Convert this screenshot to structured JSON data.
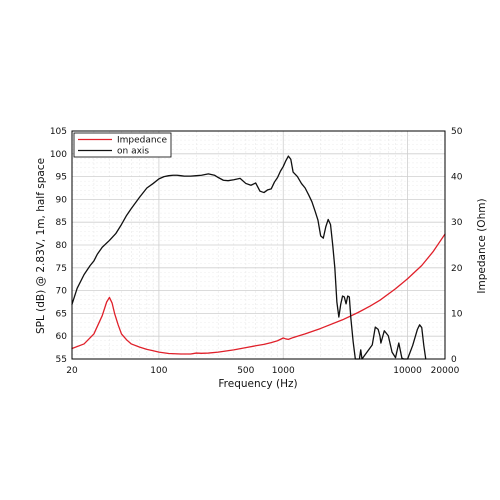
{
  "chart_data": {
    "type": "line",
    "xlabel": "Frequency (Hz)",
    "ylabel_left": "SPL (dB) @ 2.83V, 1m, half space",
    "ylabel_right": "Impedance (Ohm)",
    "x_scale": "log",
    "xlim": [
      20,
      20000
    ],
    "ylim_left": [
      55,
      105
    ],
    "ylim_right": [
      0,
      50
    ],
    "x_ticks": [
      "20",
      "100",
      "500",
      "1000",
      "10000",
      "20000"
    ],
    "y_ticks_left": [
      "55",
      "60",
      "65",
      "70",
      "75",
      "80",
      "85",
      "90",
      "95",
      "100",
      "105"
    ],
    "y_ticks_right": [
      "0",
      "10",
      "20",
      "30",
      "40",
      "50"
    ],
    "grid": true,
    "legend_position": "top-left",
    "series": [
      {
        "name": "Impedance",
        "axis": "right",
        "color": "#e0202a",
        "x": [
          20,
          25,
          30,
          35,
          38,
          40,
          42,
          44,
          47,
          50,
          55,
          60,
          70,
          80,
          90,
          100,
          120,
          150,
          180,
          200,
          220,
          250,
          300,
          400,
          500,
          600,
          700,
          800,
          900,
          1000,
          1050,
          1100,
          1200,
          1300,
          1500,
          2000,
          3000,
          4000,
          5000,
          6000,
          8000,
          10000,
          13000,
          16000,
          20000
        ],
        "y": [
          2.3,
          3.3,
          5.5,
          9.5,
          12.5,
          13.5,
          12.3,
          10,
          7.5,
          5.5,
          4.2,
          3.3,
          2.6,
          2.1,
          1.8,
          1.5,
          1.2,
          1.1,
          1.1,
          1.3,
          1.25,
          1.3,
          1.5,
          2,
          2.5,
          2.9,
          3.2,
          3.6,
          4,
          4.6,
          4.4,
          4.3,
          4.7,
          5,
          5.5,
          6.7,
          8.6,
          10.2,
          11.6,
          12.9,
          15.4,
          17.6,
          20.5,
          23.5,
          27.4
        ]
      },
      {
        "name": "on axis",
        "axis": "left",
        "color": "#111111",
        "x": [
          20,
          22,
          25,
          28,
          30,
          32,
          35,
          40,
          45,
          50,
          55,
          60,
          70,
          80,
          90,
          100,
          110,
          120,
          130,
          140,
          150,
          160,
          180,
          200,
          220,
          250,
          280,
          300,
          330,
          360,
          400,
          450,
          500,
          550,
          600,
          650,
          700,
          750,
          800,
          850,
          900,
          950,
          1000,
          1050,
          1100,
          1150,
          1200,
          1300,
          1400,
          1500,
          1600,
          1700,
          1800,
          1900,
          2000,
          2100,
          2200,
          2300,
          2400,
          2500,
          2600,
          2700,
          2800,
          2900,
          3000,
          3100,
          3200,
          3300,
          3400,
          3500,
          3650,
          3800,
          3950,
          4100,
          4200,
          4300,
          5200,
          5500,
          5800,
          6000,
          6100,
          6500,
          7000,
          7500,
          8000,
          8500,
          9000,
          9300,
          9600,
          10000,
          11000,
          12000,
          12500,
          13000,
          13500,
          14000
        ],
        "y": [
          67,
          70.5,
          73.5,
          75.5,
          76.5,
          78,
          79.5,
          81,
          82.5,
          84.5,
          86.5,
          88,
          90.5,
          92.5,
          93.5,
          94.5,
          95,
          95.2,
          95.3,
          95.3,
          95.2,
          95.1,
          95.1,
          95.2,
          95.3,
          95.6,
          95.3,
          94.8,
          94.2,
          94.1,
          94.3,
          94.6,
          93.5,
          93.1,
          93.6,
          91.8,
          91.5,
          92.1,
          92.3,
          93.8,
          94.8,
          96.2,
          97.2,
          98.5,
          99.5,
          98.8,
          96,
          95,
          93.5,
          92.5,
          91,
          89.5,
          87.5,
          85.5,
          82,
          81.5,
          84,
          85.6,
          84.5,
          80,
          75,
          67.5,
          64.2,
          67,
          68.8,
          68.6,
          67.1,
          68.8,
          68.6,
          63.9,
          58.8,
          55,
          55,
          55,
          57,
          55,
          58.1,
          62,
          61.5,
          60,
          58.5,
          61.2,
          60.1,
          56.5,
          55.3,
          58.5,
          55.2,
          55,
          55,
          55,
          58,
          61.5,
          62.5,
          61.9,
          58,
          55
        ]
      }
    ]
  }
}
